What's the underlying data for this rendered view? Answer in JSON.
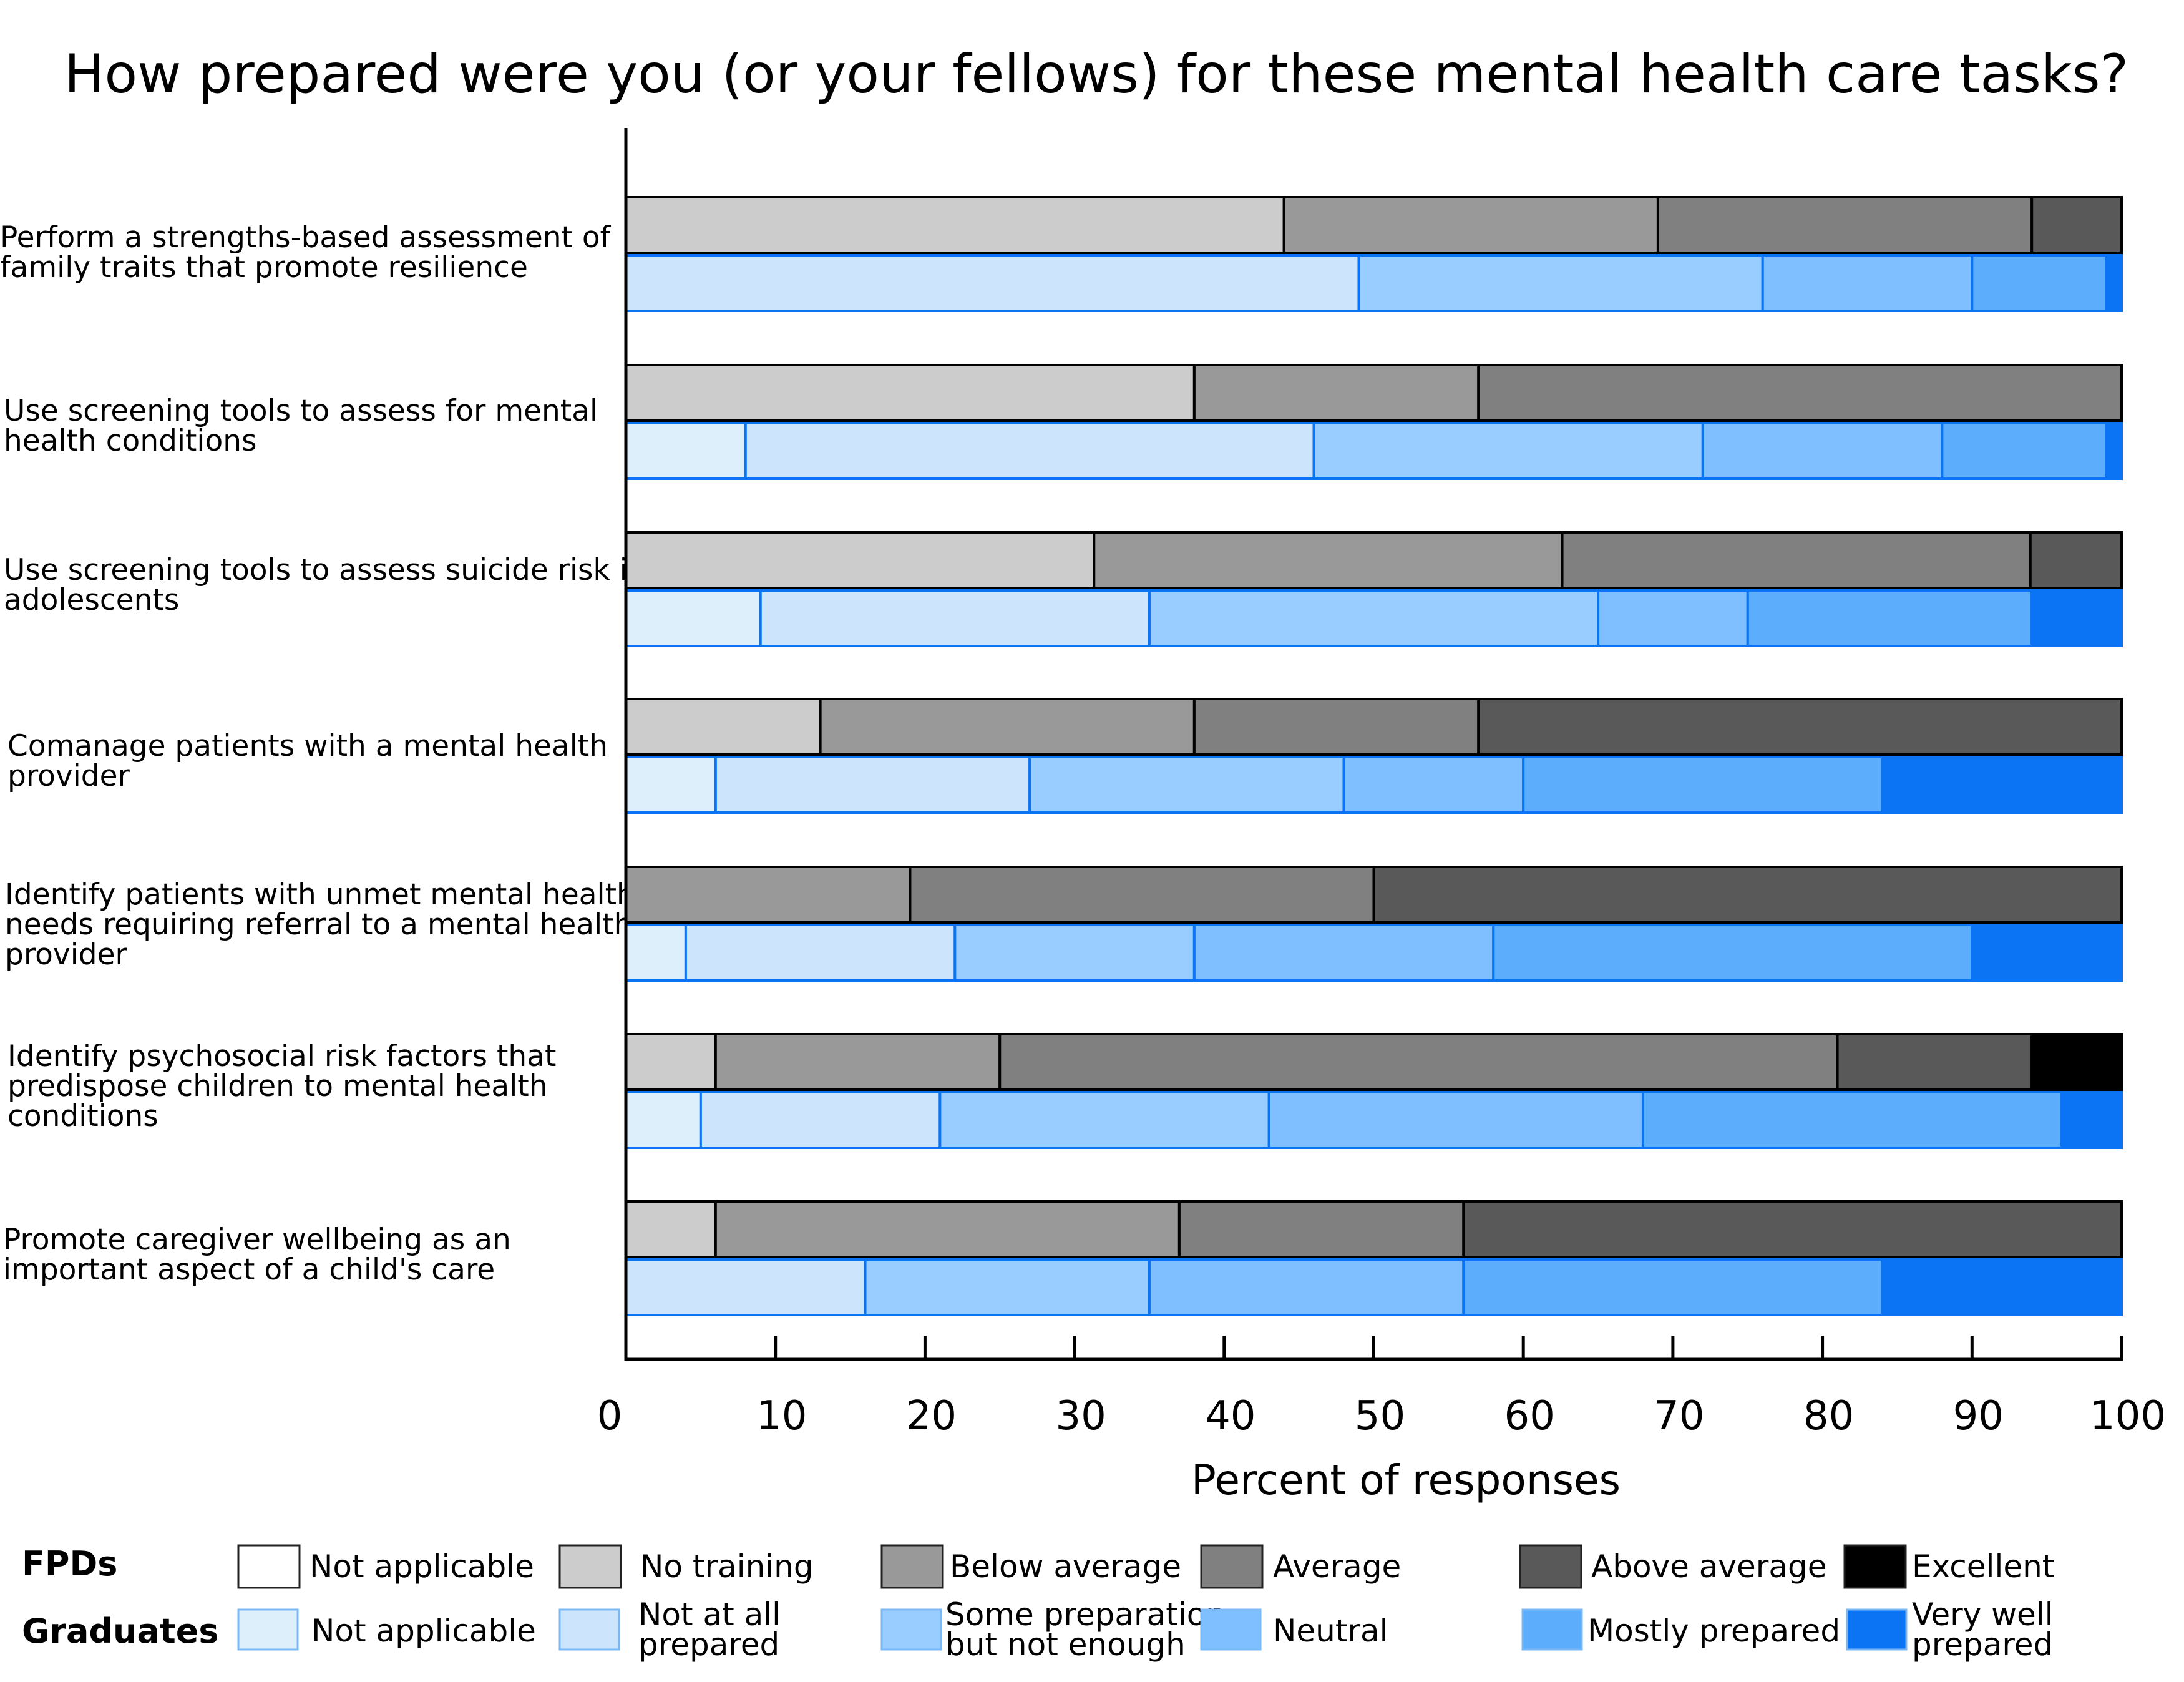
{
  "chart_data": {
    "type": "bar",
    "orientation": "horizontal",
    "stacked": true,
    "title": "How prepared were you (or your fellows) for these mental health care tasks?",
    "xlabel": "Percent of responses",
    "xlim": [
      0,
      100
    ],
    "xticks": [
      "0",
      "10",
      "20",
      "30",
      "40",
      "50",
      "60",
      "70",
      "80",
      "90",
      "100"
    ],
    "grid": false,
    "legend_position": "bottom",
    "categories": [
      [
        "Perform a strengths-based assessment of",
        "family traits that promote resilience"
      ],
      [
        "Use screening tools to assess for mental",
        "health conditions"
      ],
      [
        "Use screening tools to assess suicide risk in",
        "adolescents"
      ],
      [
        "Comanage patients with a mental health",
        "provider"
      ],
      [
        "Identify patients with unmet mental health",
        "needs requiring referral to a mental health",
        "provider"
      ],
      [
        "Identify psychosocial risk factors that",
        "predispose children to mental health",
        "conditions"
      ],
      [
        "Promote caregiver wellbeing as an",
        "important aspect of a child's care"
      ]
    ],
    "groups": [
      {
        "name": "FPDs",
        "levels": [
          "Not applicable",
          "No training",
          "Below average",
          "Average",
          "Above average",
          "Excellent"
        ],
        "colors": [
          "#ffffff",
          "#cccccc",
          "#999999",
          "#808080",
          "#595959",
          "#000000"
        ],
        "stroke": "#000000",
        "values": [
          [
            0,
            44,
            25,
            25,
            6,
            0
          ],
          [
            0,
            38,
            19,
            43,
            0,
            0
          ],
          [
            0,
            31.3,
            31.3,
            31.3,
            6.1,
            0
          ],
          [
            0,
            13,
            25,
            19,
            43,
            0
          ],
          [
            0,
            0,
            19,
            31,
            50,
            0
          ],
          [
            0,
            6,
            19,
            56,
            13,
            6
          ]
        ],
        "values_extra": [
          0,
          6,
          31,
          19,
          44,
          0
        ]
      },
      {
        "name": "Graduates",
        "levels": [
          "Not applicable",
          "Not at all prepared",
          "Some preparation but not enough",
          "Neutral",
          "Mostly prepared",
          "Very well prepared"
        ],
        "colors": [
          "#deeffc",
          "#cce4fc",
          "#99ccff",
          "#80bfff",
          "#5cadfb",
          "#0a74f5"
        ],
        "stroke": "#0a74f5",
        "values": [
          [
            0,
            49,
            27,
            14,
            9,
            1
          ],
          [
            8,
            38,
            26,
            16,
            11,
            1
          ],
          [
            9,
            26,
            30,
            10,
            19,
            6
          ],
          [
            6,
            21,
            21,
            12,
            24,
            16
          ],
          [
            4,
            18,
            16,
            20,
            32,
            10
          ],
          [
            5,
            16,
            22,
            25,
            28,
            4
          ]
        ],
        "values_extra": [
          0,
          16,
          19,
          21,
          28,
          16
        ]
      }
    ]
  },
  "legend": {
    "fpd_label": "FPDs",
    "grad_label": "Graduates",
    "fpd_items": [
      "Not applicable",
      "No training",
      "Below average",
      "Average",
      "Above average",
      "Excellent"
    ],
    "grad_items": [
      [
        "Not applicable"
      ],
      [
        "Not at all",
        "prepared"
      ],
      [
        "Some preparation",
        "but not enough"
      ],
      [
        "Neutral"
      ],
      [
        "Mostly prepared"
      ],
      [
        "Very well",
        "prepared"
      ]
    ]
  }
}
